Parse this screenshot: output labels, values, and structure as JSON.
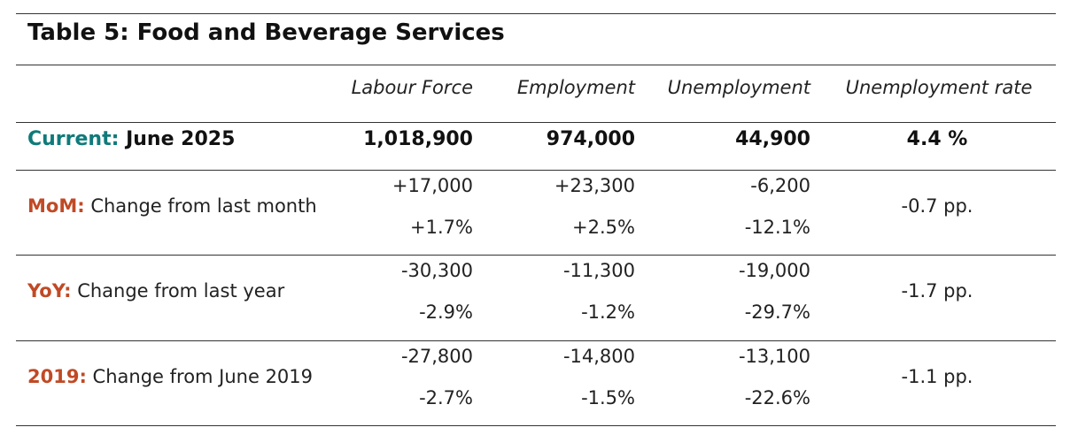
{
  "title": "Table 5: Food and Beverage Services",
  "columns": [
    "Labour Force",
    "Employment",
    "Unemployment",
    "Unemployment rate"
  ],
  "current": {
    "label_prefix": "Current:",
    "label_text": "June 2025",
    "values": [
      "1,018,900",
      "974,000",
      "44,900",
      "4.4 %"
    ]
  },
  "rows": [
    {
      "label_prefix": "MoM:",
      "label_text": "Change from last month",
      "abs": [
        "+17,000",
        "+23,300",
        "-6,200"
      ],
      "pct": [
        "+1.7%",
        "+2.5%",
        "-12.1%"
      ],
      "rate": "-0.7 pp."
    },
    {
      "label_prefix": "YoY:",
      "label_text": "Change from last year",
      "abs": [
        "-30,300",
        "-11,300",
        "-19,000"
      ],
      "pct": [
        "-2.9%",
        "-1.2%",
        "-29.7%"
      ],
      "rate": "-1.7 pp."
    },
    {
      "label_prefix": "2019:",
      "label_text": "Change from June 2019",
      "abs": [
        "-27,800",
        "-14,800",
        "-13,100"
      ],
      "pct": [
        "-2.7%",
        "-1.5%",
        "-22.6%"
      ],
      "rate": "-1.1 pp."
    }
  ],
  "colors": {
    "current_accent": "#0f7a7a",
    "change_accent": "#c04a25",
    "rule": "#333333"
  }
}
